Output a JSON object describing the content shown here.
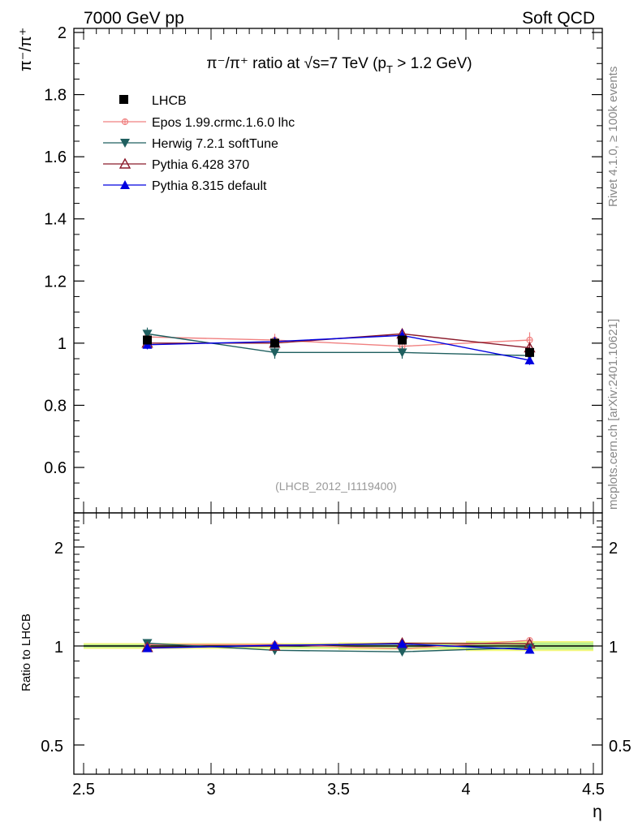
{
  "header": {
    "left": "7000 GeV pp",
    "right": "Soft QCD"
  },
  "side_labels": {
    "rivet": "Rivet 4.1.0, ≥ 100k events",
    "mcplots": "mcplots.cern.ch [arXiv:2401.10621]"
  },
  "colors": {
    "LHCB": "#000000",
    "Epos": "#f08080",
    "Herwig": "#1f5f5f",
    "Pythia6": "#8b1a2b",
    "Pythia8": "#0000e0",
    "band_yellow": "#f3f77a",
    "band_green": "#b8ef8f"
  },
  "chart_data": [
    {
      "type": "line",
      "title": "π⁻/π⁺ ratio at √s=7 TeV (p_T > 1.2 GeV)",
      "title_parts": {
        "main": "π⁻/π⁺ ratio at √s=7 TeV (p",
        "sub": "T",
        "end": " > 1.2 GeV)"
      },
      "ylabel": "π⁻/π⁺",
      "xlabel": "η",
      "xlim": [
        2.5,
        4.5
      ],
      "ylim": [
        0.45,
        2.02
      ],
      "y_ticks": [
        0.6,
        0.8,
        1,
        1.2,
        1.4,
        1.6,
        1.8,
        2
      ],
      "y_tick_labels": [
        "0.6",
        "0.8",
        "1",
        "1.2",
        "1.4",
        "1.6",
        "1.8",
        "2"
      ],
      "x": [
        2.75,
        3.25,
        3.75,
        4.25
      ],
      "watermark": "(LHCB_2012_I1119400)",
      "series": [
        {
          "key": "LHCB",
          "name": "LHCB",
          "marker": "square",
          "values": [
            1.01,
            1.0,
            1.01,
            0.97
          ],
          "errors": [
            0.012,
            0.012,
            0.012,
            0.015
          ]
        },
        {
          "key": "Epos",
          "name": "Epos 1.99.crmc.1.6.0 lhc",
          "marker": "cross",
          "values": [
            1.02,
            1.01,
            0.99,
            1.01
          ],
          "errors": [
            0.02,
            0.02,
            0.02,
            0.025
          ]
        },
        {
          "key": "Herwig",
          "name": "Herwig 7.2.1 softTune",
          "marker": "tri-down",
          "values": [
            1.03,
            0.97,
            0.97,
            0.96
          ],
          "errors": [
            0.02,
            0.02,
            0.02,
            0.02
          ]
        },
        {
          "key": "Pythia6",
          "name": "Pythia 6.428 370",
          "marker": "tri-up-open",
          "values": [
            1.0,
            1.0,
            1.03,
            0.985
          ],
          "errors": [
            0.015,
            0.015,
            0.015,
            0.015
          ]
        },
        {
          "key": "Pythia8",
          "name": "Pythia 8.315 default",
          "marker": "tri-up",
          "values": [
            0.995,
            1.005,
            1.025,
            0.945
          ],
          "errors": [
            0.015,
            0.015,
            0.02,
            0.015
          ]
        }
      ]
    },
    {
      "type": "line",
      "ylabel": "Ratio to LHCB",
      "xlabel": "η",
      "xlim": [
        2.5,
        4.5
      ],
      "ylim": [
        0.4,
        2.5
      ],
      "y_scale": "log",
      "y_ticks": [
        0.5,
        1,
        2
      ],
      "y_tick_labels": [
        "0.5",
        "1",
        "2"
      ],
      "x_ticks": [
        2.5,
        3,
        3.5,
        4,
        4.5
      ],
      "x_tick_labels": [
        "2.5",
        "3",
        "3.5",
        "4",
        "4.5"
      ],
      "x": [
        2.75,
        3.25,
        3.75,
        4.25
      ],
      "bands": {
        "yellow_halfwidth": [
          0.02,
          0.02,
          0.025,
          0.035
        ],
        "green_halfwidth": [
          0.012,
          0.012,
          0.015,
          0.025
        ]
      },
      "series": [
        {
          "key": "Epos",
          "values": [
            1.01,
            1.01,
            0.98,
            1.04
          ]
        },
        {
          "key": "Herwig",
          "values": [
            1.02,
            0.97,
            0.96,
            0.99
          ]
        },
        {
          "key": "Pythia6",
          "values": [
            0.99,
            1.0,
            1.02,
            1.015
          ]
        },
        {
          "key": "Pythia8",
          "values": [
            0.985,
            1.005,
            1.015,
            0.975
          ]
        }
      ]
    }
  ]
}
